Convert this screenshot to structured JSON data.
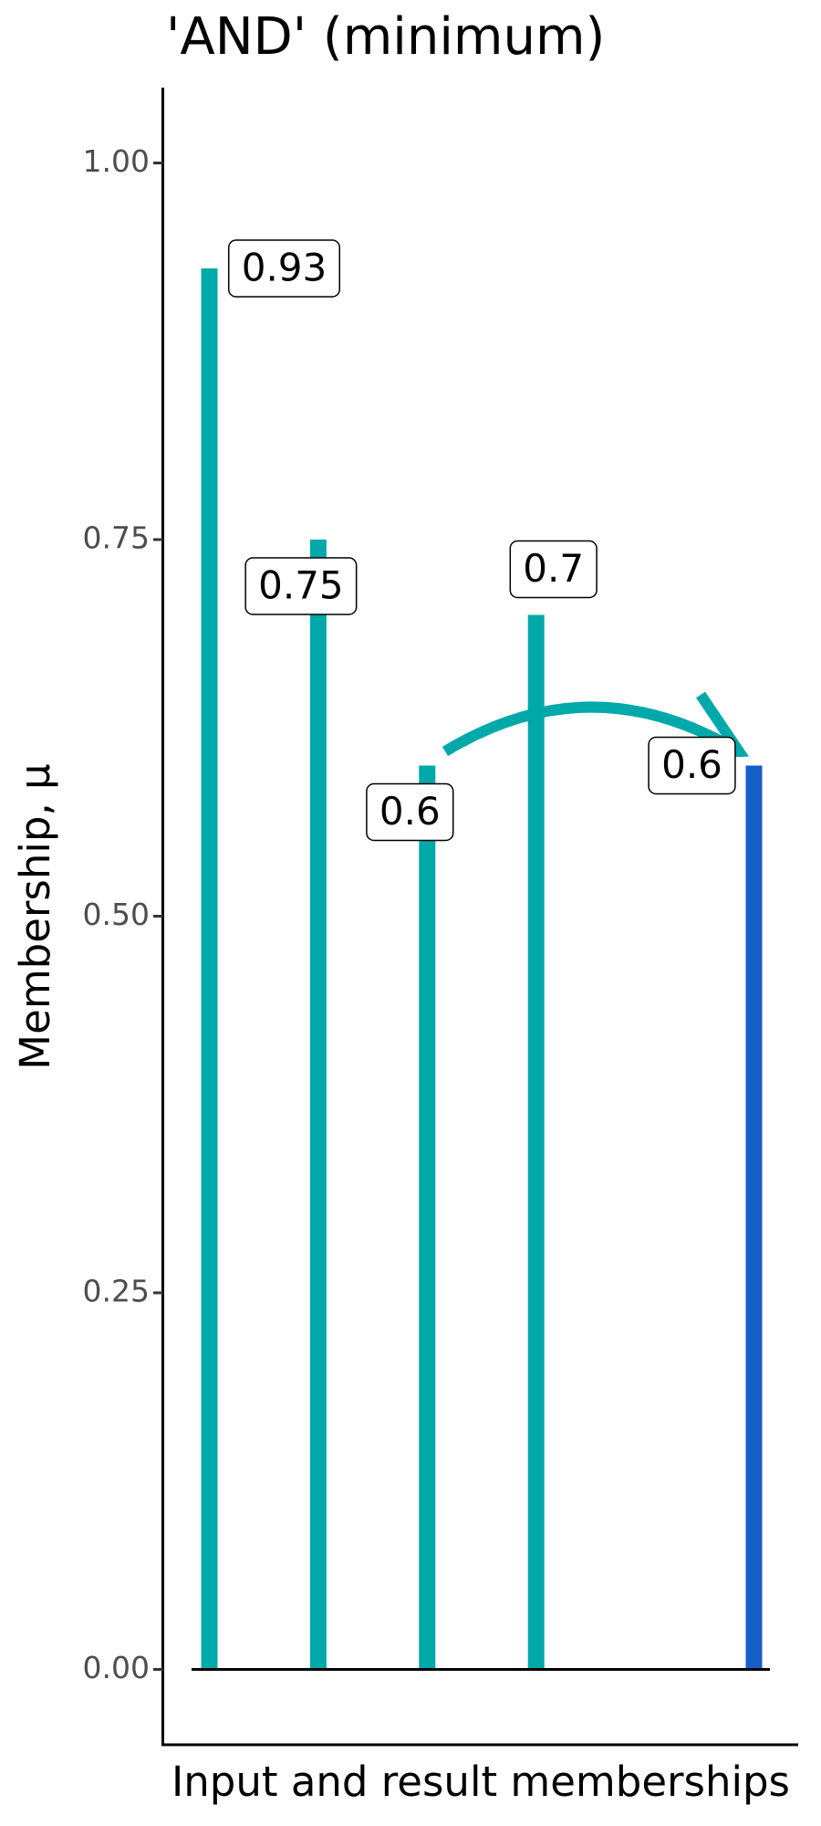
{
  "chart_data": {
    "type": "bar",
    "title": "'AND' (minimum)",
    "xlabel": "Input and result memberships",
    "ylabel": "Membership, μ",
    "categories": [
      null,
      null,
      null,
      null,
      null,
      null
    ],
    "values": [
      0.93,
      0.75,
      0.6,
      0.7,
      null,
      0.6
    ],
    "colors": [
      "#00a9a9",
      "#00a9a9",
      "#00a9a9",
      "#00a9a9",
      null,
      "#1560c8"
    ],
    "ylim": [
      -0.05,
      1.05
    ],
    "yticks": [
      {
        "value": 0,
        "label": "0.00"
      },
      {
        "value": 0.25,
        "label": "0.25"
      },
      {
        "value": 0.5,
        "label": "0.50"
      },
      {
        "value": 0.75,
        "label": "0.75"
      },
      {
        "value": 1,
        "label": "1.00"
      }
    ],
    "grid": false
  }
}
